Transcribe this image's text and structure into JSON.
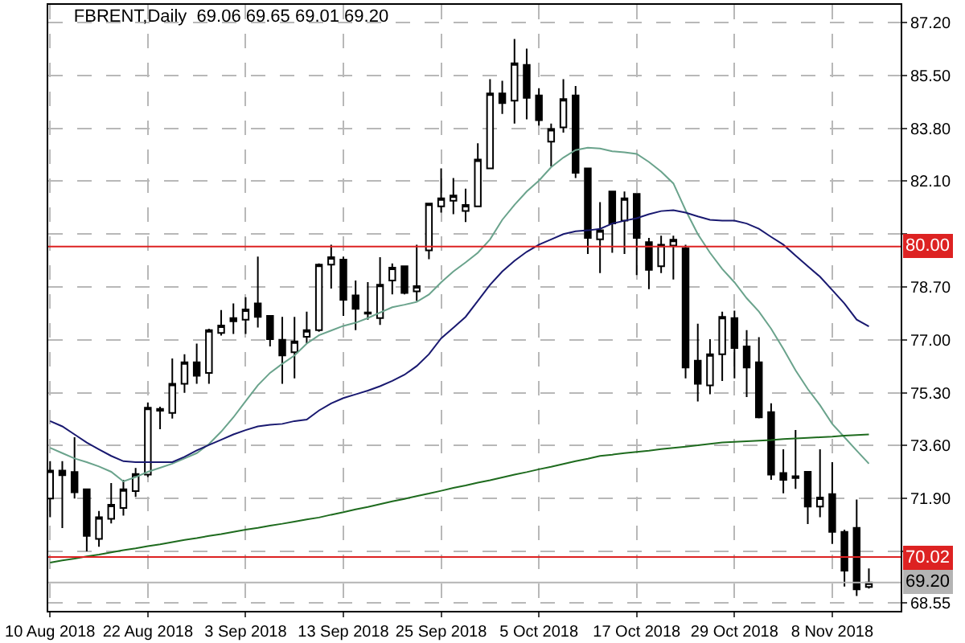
{
  "chart_data": {
    "type": "candlestick",
    "title": "FBRENT,Daily  69.06 69.65 69.01 69.20",
    "categories": [
      "10 Aug 2018",
      null,
      null,
      null,
      null,
      null,
      null,
      null,
      "22 Aug 2018",
      null,
      null,
      null,
      null,
      null,
      null,
      null,
      "3 Sep 2018",
      null,
      null,
      null,
      null,
      null,
      null,
      null,
      "13 Sep 2018",
      null,
      null,
      null,
      null,
      null,
      null,
      null,
      "25 Sep 2018",
      null,
      null,
      null,
      null,
      null,
      null,
      null,
      "5 Oct 2018",
      null,
      null,
      null,
      null,
      null,
      null,
      null,
      "17 Oct 2018",
      null,
      null,
      null,
      null,
      null,
      null,
      null,
      "29 Oct 2018",
      null,
      null,
      null,
      null,
      null,
      null,
      null,
      "8 Nov 2018",
      null,
      null,
      null
    ],
    "ohlc": [
      [
        71.9,
        73.1,
        71.3,
        72.8
      ],
      [
        72.8,
        73.1,
        70.95,
        72.65
      ],
      [
        72.75,
        73.87,
        71.9,
        72.1
      ],
      [
        72.2,
        72.2,
        70.2,
        70.7
      ],
      [
        70.6,
        71.5,
        70.35,
        71.3
      ],
      [
        71.25,
        72.4,
        71.1,
        71.7
      ],
      [
        71.6,
        72.5,
        71.35,
        72.2
      ],
      [
        72.14,
        72.88,
        71.95,
        72.69
      ],
      [
        72.67,
        74.99,
        72.59,
        74.82
      ],
      [
        74.72,
        74.85,
        74.13,
        74.78
      ],
      [
        74.65,
        76.4,
        74.47,
        75.59
      ],
      [
        75.59,
        76.54,
        75.3,
        76.28
      ],
      [
        76.28,
        76.88,
        75.59,
        75.85
      ],
      [
        75.94,
        77.36,
        75.59,
        77.31
      ],
      [
        77.22,
        77.96,
        77.14,
        77.46
      ],
      [
        77.7,
        78.17,
        77.19,
        77.6
      ],
      [
        77.65,
        78.37,
        77.19,
        77.98
      ],
      [
        78.17,
        79.68,
        77.4,
        77.74
      ],
      [
        77.77,
        77.77,
        76.79,
        77.02
      ],
      [
        77.0,
        77.74,
        75.59,
        76.5
      ],
      [
        76.6,
        77.74,
        75.76,
        76.95
      ],
      [
        77.1,
        77.91,
        76.88,
        77.31
      ],
      [
        77.31,
        79.46,
        77.26,
        79.42
      ],
      [
        79.42,
        80.06,
        78.65,
        79.66
      ],
      [
        79.58,
        79.68,
        77.77,
        78.29
      ],
      [
        78.43,
        78.91,
        77.31,
        78.0
      ],
      [
        77.84,
        78.86,
        77.65,
        77.88
      ],
      [
        77.7,
        79.66,
        77.48,
        78.77
      ],
      [
        78.91,
        79.46,
        78.46,
        79.32
      ],
      [
        79.37,
        79.37,
        78.46,
        78.51
      ],
      [
        78.56,
        80.06,
        78.25,
        78.73
      ],
      [
        79.88,
        81.41,
        79.59,
        81.38
      ],
      [
        81.29,
        82.51,
        81.09,
        81.55
      ],
      [
        81.47,
        82.2,
        81.04,
        81.64
      ],
      [
        81.14,
        81.86,
        80.79,
        81.34
      ],
      [
        81.29,
        83.32,
        81.29,
        82.8
      ],
      [
        82.51,
        85.38,
        82.51,
        84.92
      ],
      [
        84.92,
        85.33,
        84.26,
        84.61
      ],
      [
        84.69,
        86.67,
        83.95,
        85.89
      ],
      [
        85.84,
        86.36,
        84.09,
        84.78
      ],
      [
        84.86,
        85.09,
        83.89,
        84.06
      ],
      [
        83.37,
        83.95,
        82.58,
        83.78
      ],
      [
        83.83,
        85.38,
        83.66,
        84.74
      ],
      [
        84.86,
        85.16,
        82.2,
        82.37
      ],
      [
        82.51,
        82.51,
        79.76,
        80.28
      ],
      [
        80.23,
        81.43,
        79.15,
        80.52
      ],
      [
        81.77,
        81.77,
        79.8,
        80.74
      ],
      [
        80.83,
        81.77,
        79.76,
        81.55
      ],
      [
        81.69,
        81.69,
        79.08,
        80.28
      ],
      [
        80.14,
        80.28,
        78.63,
        79.25
      ],
      [
        79.37,
        80.35,
        79.15,
        80.06
      ],
      [
        80.03,
        80.35,
        78.94,
        80.22
      ],
      [
        79.94,
        80.06,
        75.76,
        76.11
      ],
      [
        76.33,
        77.52,
        75.02,
        75.59
      ],
      [
        75.54,
        77.02,
        75.25,
        76.54
      ],
      [
        76.54,
        77.91,
        75.68,
        77.74
      ],
      [
        77.7,
        77.94,
        75.76,
        76.74
      ],
      [
        76.79,
        77.31,
        75.16,
        76.11
      ],
      [
        76.28,
        77.09,
        74.48,
        74.51
      ],
      [
        74.68,
        74.96,
        72.5,
        72.67
      ],
      [
        72.72,
        73.48,
        72.07,
        72.5
      ],
      [
        72.62,
        74.1,
        72.21,
        72.56
      ],
      [
        72.76,
        72.76,
        71.08,
        71.64
      ],
      [
        71.64,
        73.48,
        71.3,
        71.93
      ],
      [
        72.04,
        73.07,
        70.44,
        70.83
      ],
      [
        70.83,
        70.9,
        69.07,
        69.58
      ],
      [
        70.96,
        71.87,
        68.77,
        68.98
      ],
      [
        69.06,
        69.65,
        69.01,
        69.2
      ]
    ],
    "series": [
      {
        "type": "line",
        "color": "#6aa38c",
        "values": [
          73.53,
          73.36,
          73.19,
          73.07,
          72.93,
          72.76,
          72.45,
          72.59,
          72.76,
          72.89,
          73.02,
          73.19,
          73.36,
          73.65,
          74.05,
          74.51,
          75.03,
          75.54,
          75.94,
          76.23,
          76.5,
          76.88,
          77.15,
          77.3,
          77.45,
          77.55,
          77.7,
          77.88,
          78.05,
          78.13,
          78.22,
          78.46,
          78.85,
          79.2,
          79.49,
          79.8,
          80.23,
          80.86,
          81.34,
          81.77,
          82.12,
          82.55,
          82.86,
          83.1,
          83.18,
          83.15,
          83.06,
          83.03,
          82.98,
          82.72,
          82.41,
          82.03,
          81.17,
          80.4,
          79.8,
          79.28,
          78.85,
          78.34,
          77.91,
          77.36,
          76.71,
          76.02,
          75.42,
          74.9,
          74.3,
          73.87,
          73.44,
          73.02
        ]
      },
      {
        "type": "line",
        "color": "#191970",
        "values": [
          74.39,
          74.22,
          73.96,
          73.7,
          73.48,
          73.27,
          73.1,
          73.07,
          73.07,
          73.07,
          73.07,
          73.24,
          73.45,
          73.62,
          73.79,
          73.96,
          74.1,
          74.22,
          74.27,
          74.3,
          74.39,
          74.44,
          74.73,
          74.96,
          75.13,
          75.25,
          75.37,
          75.51,
          75.68,
          75.88,
          76.16,
          76.54,
          77.05,
          77.39,
          77.74,
          78.25,
          78.77,
          79.2,
          79.54,
          79.83,
          80.06,
          80.23,
          80.4,
          80.49,
          80.52,
          80.57,
          80.74,
          80.83,
          80.91,
          81.04,
          81.14,
          81.17,
          81.09,
          80.97,
          80.86,
          80.83,
          80.83,
          80.74,
          80.57,
          80.31,
          80.06,
          79.71,
          79.37,
          79.03,
          78.6,
          78.17,
          77.65,
          77.43
        ]
      },
      {
        "type": "line",
        "color": "#1e6b1e",
        "values": [
          69.84,
          69.91,
          69.97,
          70.04,
          70.1,
          70.17,
          70.24,
          70.3,
          70.37,
          70.43,
          70.5,
          70.57,
          70.63,
          70.7,
          70.76,
          70.83,
          70.9,
          70.96,
          71.03,
          71.09,
          71.16,
          71.23,
          71.29,
          71.38,
          71.46,
          71.55,
          71.63,
          71.72,
          71.81,
          71.89,
          71.98,
          72.06,
          72.15,
          72.24,
          72.32,
          72.41,
          72.49,
          72.58,
          72.67,
          72.75,
          72.84,
          72.92,
          73.01,
          73.1,
          73.18,
          73.27,
          73.31,
          73.36,
          73.4,
          73.44,
          73.49,
          73.53,
          73.57,
          73.61,
          73.66,
          73.7,
          73.72,
          73.74,
          73.76,
          73.78,
          73.81,
          73.83,
          73.85,
          73.87,
          73.89,
          73.92,
          73.94,
          73.96
        ]
      }
    ],
    "ref_lines": [
      {
        "axis": "y",
        "value": 80.0,
        "label": "80.00",
        "color": "#dd2222"
      },
      {
        "axis": "y",
        "value": 70.02,
        "label": "70.02",
        "color": "#dd2222"
      },
      {
        "axis": "y",
        "value": 69.2,
        "label": "69.20",
        "color": "#b4b4b4"
      }
    ],
    "ylim": [
      68.29,
      87.77
    ],
    "yticks": [
      {
        "value": 68.55,
        "label": "68.55"
      },
      {
        "value": 70.2,
        "label": null
      },
      {
        "value": 71.9,
        "label": "71.90"
      },
      {
        "value": 73.6,
        "label": "73.60"
      },
      {
        "value": 75.3,
        "label": "75.30"
      },
      {
        "value": 77.0,
        "label": "77.00"
      },
      {
        "value": 78.7,
        "label": "78.70"
      },
      {
        "value": 80.4,
        "label": null
      },
      {
        "value": 82.1,
        "label": "82.10"
      },
      {
        "value": 83.8,
        "label": "83.80"
      },
      {
        "value": 85.5,
        "label": "85.50"
      },
      {
        "value": 87.2,
        "label": "87.20"
      }
    ],
    "grid": true
  }
}
